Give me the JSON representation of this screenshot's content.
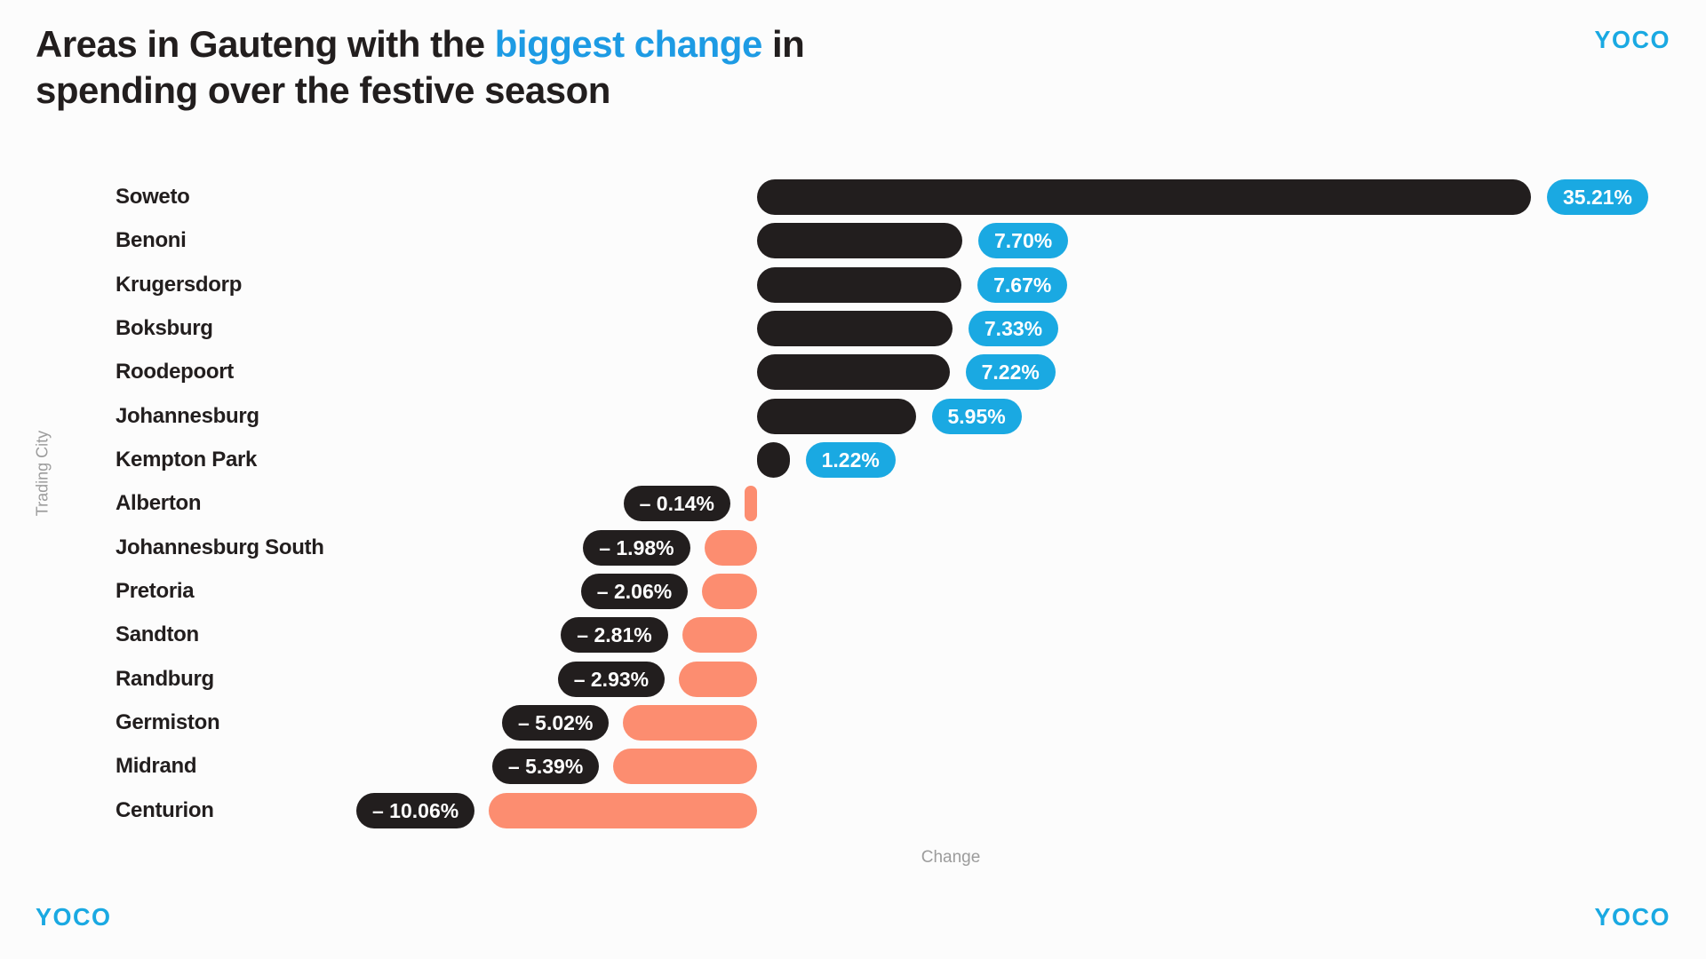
{
  "page": {
    "background": "#FCFCFC",
    "title": {
      "part1": "Areas in Gauteng with the ",
      "highlight": "biggest change",
      "part2": " in",
      "line2": "spending over the festive season"
    },
    "brand": {
      "logo_text": "YOCO"
    }
  },
  "colors": {
    "dark": "#221E1E",
    "accent_blue": "#1AA9E2",
    "accent_blue_title": "#1D9BE4",
    "salmon": "#FC8D70",
    "gray": "#9C9C9C",
    "background": "#FCFCFC",
    "pill_text": "#FFFFFF"
  },
  "chart_data": {
    "type": "bar",
    "orientation": "horizontal",
    "title": "Areas in Gauteng with the biggest change in spending over the festive season",
    "xlabel": "Change",
    "ylabel": "Trading City",
    "grid": false,
    "legend": false,
    "categories": [
      "Soweto",
      "Benoni",
      "Krugersdorp",
      "Boksburg",
      "Roodepoort",
      "Johannesburg",
      "Kempton Park",
      "Alberton",
      "Johannesburg South",
      "Pretoria",
      "Sandton",
      "Randburg",
      "Germiston",
      "Midrand",
      "Centurion"
    ],
    "values": [
      35.21,
      7.7,
      7.67,
      7.33,
      7.22,
      5.95,
      1.22,
      -0.14,
      -1.98,
      -2.06,
      -2.81,
      -2.93,
      -5.02,
      -5.39,
      -10.06
    ],
    "value_labels": [
      "35.21%",
      "7.70%",
      "7.67%",
      "7.33%",
      "7.22%",
      "5.95%",
      "1.22%",
      "– 0.14%",
      "– 1.98%",
      "– 2.06%",
      "– 2.81%",
      "– 2.93%",
      "– 5.02%",
      "– 5.39%",
      "– 10.06%"
    ],
    "positive_bar_color": "#221E1E",
    "negative_bar_color": "#FC8D70",
    "positive_label_pill_color": "#1AA9E2",
    "negative_label_pill_color": "#221E1E"
  }
}
